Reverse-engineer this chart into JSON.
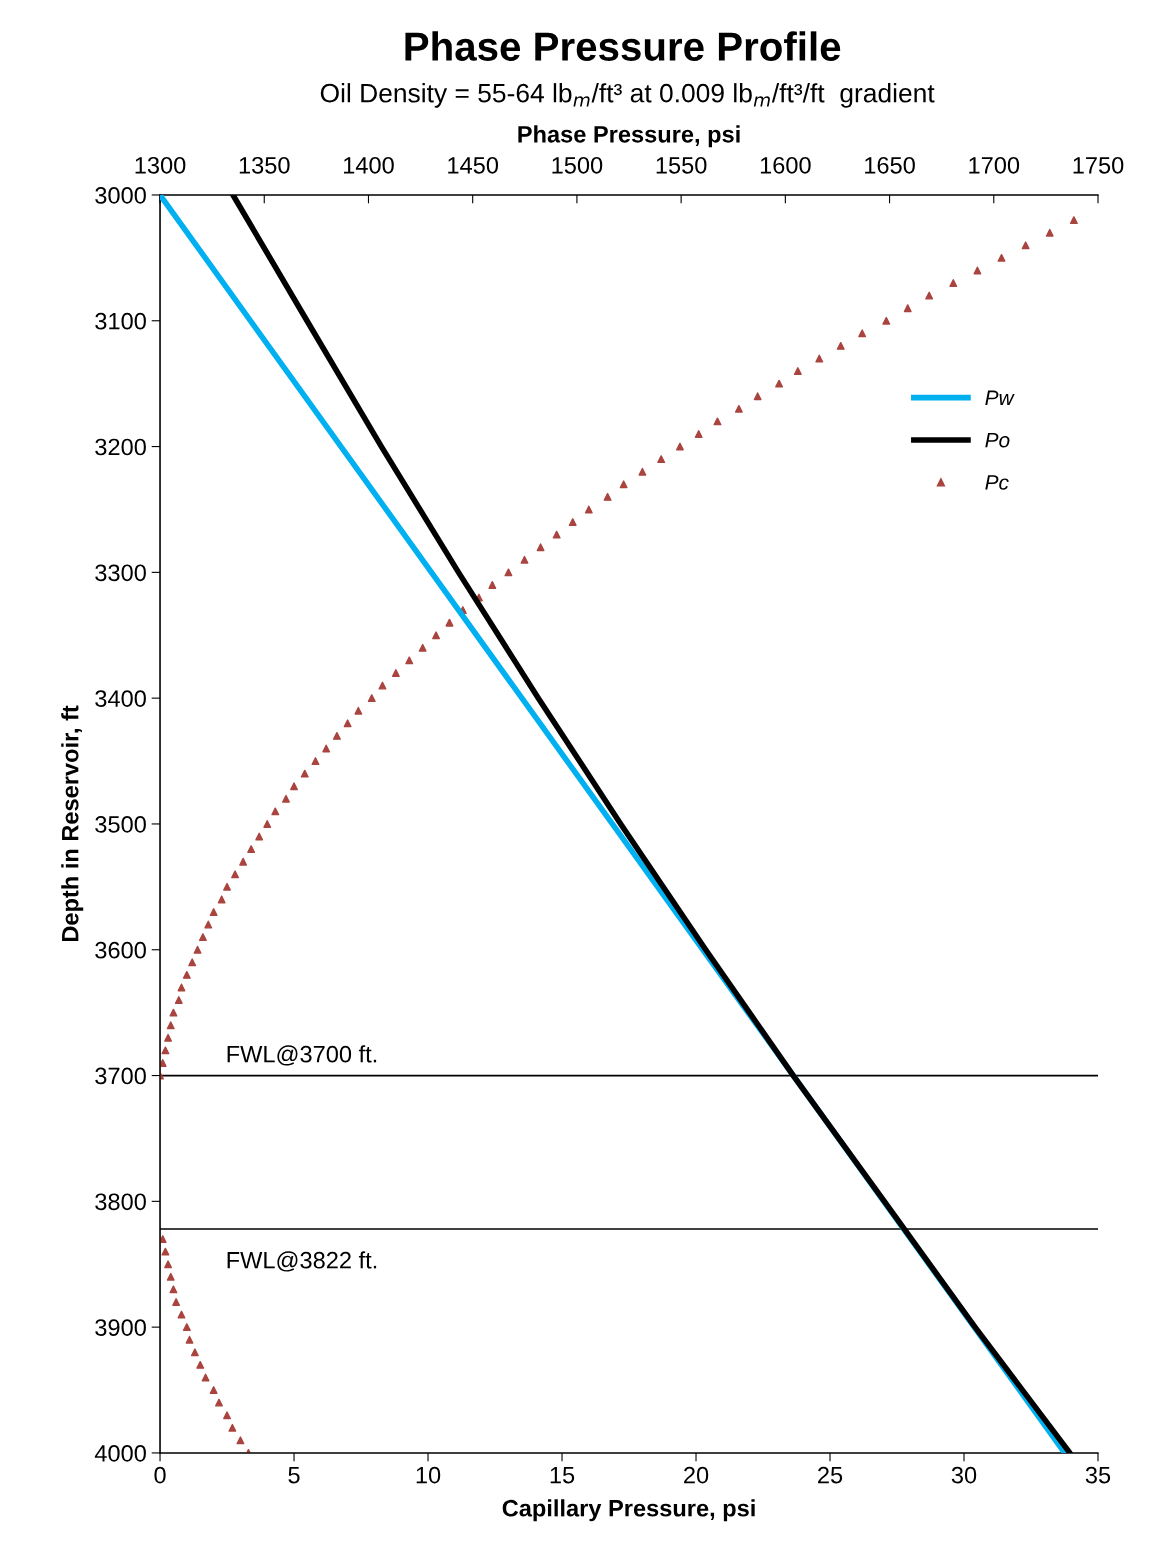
{
  "chart_data": {
    "type": "line",
    "title": "Phase Pressure Profile",
    "subtitle": "Oil Density = 55-64 lb$_{m}$/ft³ at 0.009 lb$_{m}$/ft³/ft  gradient",
    "x2label": "Phase Pressure, psi",
    "ylabel": "Depth in Reservoir, ft",
    "xlabel": "Capillary Pressure, psi",
    "xlim": [
      0,
      35
    ],
    "xticks": [
      0,
      5,
      10,
      15,
      20,
      25,
      30,
      35
    ],
    "x2lim": [
      1300,
      1750
    ],
    "x2ticks": [
      1300,
      1350,
      1400,
      1450,
      1500,
      1550,
      1600,
      1650,
      1700,
      1750
    ],
    "ylim": [
      4000,
      3000
    ],
    "yticks": [
      3000,
      3100,
      3200,
      3300,
      3400,
      3500,
      3600,
      3700,
      3800,
      3900,
      4000
    ],
    "grid": false,
    "legend": "top right",
    "ref_lines": [
      {
        "axis": "y",
        "value": 3700,
        "label": "FWL@3700 ft.",
        "color": "#000000"
      },
      {
        "axis": "y",
        "value": 3822,
        "label": "FWL@3822 ft.",
        "color": "#000000"
      }
    ],
    "series": [
      {
        "name": "Pw",
        "axis": "x2",
        "color": "#00b0f0",
        "marker": "none",
        "line_style": "solid",
        "x": [
          1300,
          1517,
          1734
        ],
        "values": [
          3000,
          3500,
          4000
        ]
      },
      {
        "name": "Po",
        "axis": "x2",
        "color": "#000000",
        "marker": "none",
        "line_style": "solid",
        "x": [
          1335,
          1370.5,
          1406.2,
          1443.2,
          1481.5,
          1521.0,
          1561.8,
          1603.8,
          1647.5,
          1691.0,
          1736.5
        ],
        "values": [
          3000,
          3100,
          3200,
          3300,
          3400,
          3500,
          3600,
          3700,
          3800,
          3900,
          4000
        ]
      },
      {
        "name": "Pc",
        "type": "scatter",
        "color": "#a9443f",
        "marker": "triangle",
        "x": [
          34.1,
          33.2,
          32.3,
          31.4,
          30.5,
          29.6,
          28.7,
          27.9,
          27.1,
          26.2,
          25.4,
          24.6,
          23.8,
          23.1,
          22.3,
          21.6,
          20.8,
          20.1,
          19.4,
          18.7,
          18.0,
          17.3,
          16.7,
          16.0,
          15.4,
          14.8,
          14.2,
          13.6,
          13.0,
          12.4,
          11.9,
          11.3,
          10.8,
          10.3,
          9.8,
          9.3,
          8.8,
          8.3,
          7.9,
          7.4,
          7.0,
          6.6,
          6.2,
          5.8,
          5.4,
          5.0,
          4.7,
          4.3,
          4.0,
          3.7,
          3.4,
          3.1,
          2.8,
          2.5,
          2.3,
          2.0,
          1.8,
          1.6,
          1.4,
          1.2,
          1.0,
          0.8,
          0.7,
          0.5,
          0.4,
          0.3,
          0.2,
          0.1,
          0,
          0.1,
          0.2,
          0.3,
          0.4,
          0.5,
          0.6,
          0.8,
          1.0,
          1.1,
          1.3,
          1.5,
          1.7,
          2.0,
          2.2,
          2.5,
          2.7,
          3.0,
          3.3
        ],
        "values": [
          3020,
          3030,
          3040,
          3050,
          3060,
          3070,
          3080,
          3090,
          3100,
          3110,
          3120,
          3130,
          3140,
          3150,
          3160,
          3170,
          3180,
          3190,
          3200,
          3210,
          3220,
          3230,
          3240,
          3250,
          3260,
          3270,
          3280,
          3290,
          3300,
          3310,
          3320,
          3330,
          3340,
          3350,
          3360,
          3370,
          3380,
          3390,
          3400,
          3410,
          3420,
          3430,
          3440,
          3450,
          3460,
          3470,
          3480,
          3490,
          3500,
          3510,
          3520,
          3530,
          3540,
          3550,
          3560,
          3570,
          3580,
          3590,
          3600,
          3610,
          3620,
          3630,
          3640,
          3650,
          3660,
          3670,
          3680,
          3690,
          3700,
          3830,
          3840,
          3850,
          3860,
          3870,
          3880,
          3890,
          3900,
          3910,
          3920,
          3930,
          3940,
          3950,
          3960,
          3970,
          3980,
          3990,
          4000
        ]
      }
    ]
  }
}
